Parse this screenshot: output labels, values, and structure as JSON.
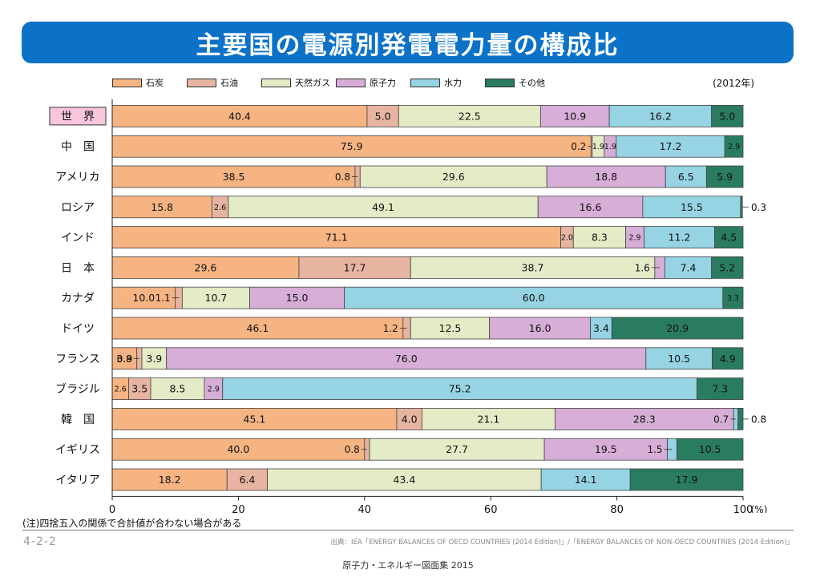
{
  "title": "主要国の電源別発電電力量の構成比",
  "year_label": "(2012年)",
  "legend": [
    {
      "label": "石炭",
      "color": "#f6b482"
    },
    {
      "label": "石油",
      "color": "#e7b4a2"
    },
    {
      "label": "天然ガス",
      "color": "#e3ebc7"
    },
    {
      "label": "原子力",
      "color": "#d6aed7"
    },
    {
      "label": "水力",
      "color": "#96d3e3"
    },
    {
      "label": "その他",
      "color": "#2a7c60"
    }
  ],
  "note": "(注)四捨五入の関係で合計値が合わない場合がある",
  "page_code": "4-2-2",
  "source": "出典：IEA「ENERGY BALANCES OF OECD COUNTRIES (2014 Edition)」/「ENERGY BALANCES OF NON-OECD COUNTRIES (2014 Edition)」",
  "book_title": "原子力・エネルギー図面集 2015",
  "chart_data": {
    "type": "bar",
    "orientation": "horizontal",
    "stacked": true,
    "year": "2012",
    "categories": [
      "世　界",
      "中　国",
      "アメリカ",
      "ロシア",
      "インド",
      "日　本",
      "カナダ",
      "ドイツ",
      "フランス",
      "ブラジル",
      "韓　国",
      "イギリス",
      "イタリア"
    ],
    "series": [
      {
        "name": "石炭",
        "values": [
          40.4,
          75.9,
          38.5,
          15.8,
          71.1,
          29.6,
          10.0,
          46.1,
          3.9,
          2.6,
          45.1,
          40.0,
          18.2
        ]
      },
      {
        "name": "石油",
        "values": [
          5.0,
          0.2,
          0.8,
          2.6,
          2.0,
          17.7,
          1.1,
          1.2,
          0.8,
          3.5,
          4.0,
          0.8,
          6.4
        ]
      },
      {
        "name": "天然ガス",
        "values": [
          22.5,
          1.9,
          29.6,
          49.1,
          8.3,
          38.7,
          10.7,
          12.5,
          3.9,
          8.5,
          21.1,
          27.7,
          43.4
        ]
      },
      {
        "name": "原子力",
        "values": [
          10.9,
          1.9,
          18.8,
          16.6,
          2.9,
          1.6,
          15.0,
          16.0,
          76.0,
          2.9,
          28.3,
          19.5,
          0
        ]
      },
      {
        "name": "水力",
        "values": [
          16.2,
          17.2,
          6.5,
          15.5,
          11.2,
          7.4,
          60.0,
          3.4,
          10.5,
          75.2,
          0.7,
          1.5,
          14.1
        ]
      },
      {
        "name": "その他",
        "values": [
          5.0,
          2.9,
          5.9,
          0.3,
          4.5,
          5.2,
          3.3,
          20.9,
          4.9,
          7.3,
          0.8,
          10.5,
          17.9
        ]
      }
    ],
    "xlim": [
      0,
      100
    ],
    "xticks": [
      0,
      20,
      40,
      60,
      80,
      100
    ],
    "xunit": "(%)",
    "legend_position": "top",
    "grid": false
  }
}
